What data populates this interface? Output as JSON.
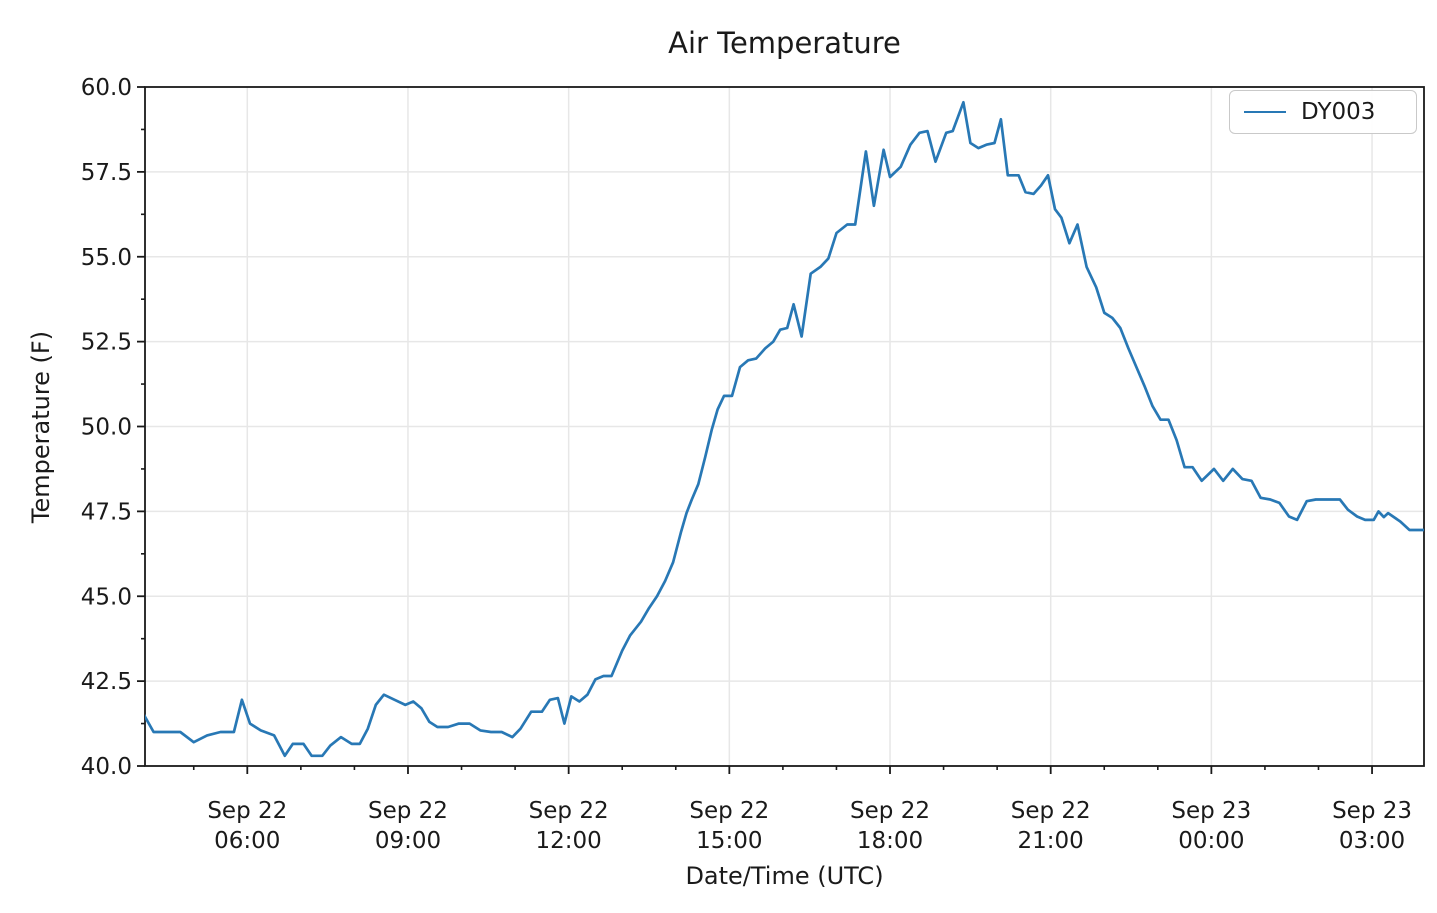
{
  "chart_data": {
    "type": "line",
    "title": "Air Temperature",
    "xlabel": "Date/Time (UTC)",
    "ylabel": "Temperature (F)",
    "grid": "major gridlines on, light gray",
    "legend_position": "upper right",
    "x_unit": "decimal hours UTC since Sep 22 00:00",
    "xlim_hours": [
      4.09,
      27.97
    ],
    "ylim": [
      40.0,
      60.0
    ],
    "y_major_ticks": [
      40.0,
      42.5,
      45.0,
      47.5,
      50.0,
      52.5,
      55.0,
      57.5,
      60.0
    ],
    "y_minor_tick_step": 1.25,
    "x_minor_tick_step_hours": 1,
    "x_major_ticks": [
      {
        "hour": 6,
        "line1": "Sep 22",
        "line2": "06:00"
      },
      {
        "hour": 9,
        "line1": "Sep 22",
        "line2": "09:00"
      },
      {
        "hour": 12,
        "line1": "Sep 22",
        "line2": "12:00"
      },
      {
        "hour": 15,
        "line1": "Sep 22",
        "line2": "15:00"
      },
      {
        "hour": 18,
        "line1": "Sep 22",
        "line2": "18:00"
      },
      {
        "hour": 21,
        "line1": "Sep 22",
        "line2": "21:00"
      },
      {
        "hour": 24,
        "line1": "Sep 23",
        "line2": "00:00"
      },
      {
        "hour": 27,
        "line1": "Sep 23",
        "line2": "03:00"
      }
    ],
    "colors": {
      "line": "#2878b5",
      "grid": "#e7e7e7",
      "spine": "#1a1a1a",
      "text": "#1a1a1a",
      "legend_border": "#c9c9c9",
      "background": "#ffffff"
    },
    "series": [
      {
        "name": "DY003",
        "color": "#2878b5",
        "points": [
          [
            4.0,
            41.7
          ],
          [
            4.25,
            41.0
          ],
          [
            4.5,
            41.0
          ],
          [
            4.75,
            41.0
          ],
          [
            5.0,
            40.7
          ],
          [
            5.25,
            40.9
          ],
          [
            5.5,
            41.0
          ],
          [
            5.75,
            41.0
          ],
          [
            5.9,
            41.95
          ],
          [
            6.05,
            41.25
          ],
          [
            6.25,
            41.05
          ],
          [
            6.5,
            40.9
          ],
          [
            6.7,
            40.3
          ],
          [
            6.85,
            40.65
          ],
          [
            7.05,
            40.65
          ],
          [
            7.2,
            40.3
          ],
          [
            7.4,
            40.3
          ],
          [
            7.55,
            40.6
          ],
          [
            7.75,
            40.85
          ],
          [
            7.95,
            40.65
          ],
          [
            8.1,
            40.65
          ],
          [
            8.25,
            41.1
          ],
          [
            8.4,
            41.8
          ],
          [
            8.55,
            42.1
          ],
          [
            8.75,
            41.95
          ],
          [
            8.95,
            41.8
          ],
          [
            9.1,
            41.9
          ],
          [
            9.25,
            41.7
          ],
          [
            9.4,
            41.3
          ],
          [
            9.55,
            41.15
          ],
          [
            9.75,
            41.15
          ],
          [
            9.95,
            41.25
          ],
          [
            10.15,
            41.25
          ],
          [
            10.35,
            41.05
          ],
          [
            10.55,
            41.0
          ],
          [
            10.75,
            41.0
          ],
          [
            10.95,
            40.85
          ],
          [
            11.1,
            41.1
          ],
          [
            11.3,
            41.6
          ],
          [
            11.5,
            41.6
          ],
          [
            11.65,
            41.95
          ],
          [
            11.8,
            42.0
          ],
          [
            11.92,
            41.25
          ],
          [
            12.05,
            42.05
          ],
          [
            12.2,
            41.9
          ],
          [
            12.35,
            42.1
          ],
          [
            12.5,
            42.55
          ],
          [
            12.65,
            42.65
          ],
          [
            12.8,
            42.65
          ],
          [
            13.0,
            43.4
          ],
          [
            13.15,
            43.85
          ],
          [
            13.35,
            44.25
          ],
          [
            13.5,
            44.65
          ],
          [
            13.65,
            45.0
          ],
          [
            13.8,
            45.45
          ],
          [
            13.95,
            46.0
          ],
          [
            14.1,
            46.9
          ],
          [
            14.2,
            47.45
          ],
          [
            14.3,
            47.85
          ],
          [
            14.42,
            48.3
          ],
          [
            14.55,
            49.1
          ],
          [
            14.67,
            49.9
          ],
          [
            14.78,
            50.5
          ],
          [
            14.9,
            50.9
          ],
          [
            15.05,
            50.9
          ],
          [
            15.2,
            51.75
          ],
          [
            15.35,
            51.95
          ],
          [
            15.5,
            52.0
          ],
          [
            15.67,
            52.3
          ],
          [
            15.82,
            52.5
          ],
          [
            15.95,
            52.85
          ],
          [
            16.08,
            52.9
          ],
          [
            16.2,
            53.6
          ],
          [
            16.35,
            52.65
          ],
          [
            16.52,
            54.5
          ],
          [
            16.7,
            54.7
          ],
          [
            16.85,
            54.95
          ],
          [
            17.0,
            55.7
          ],
          [
            17.2,
            55.95
          ],
          [
            17.35,
            55.95
          ],
          [
            17.55,
            58.1
          ],
          [
            17.7,
            56.5
          ],
          [
            17.88,
            58.15
          ],
          [
            18.0,
            57.35
          ],
          [
            18.2,
            57.65
          ],
          [
            18.38,
            58.3
          ],
          [
            18.55,
            58.65
          ],
          [
            18.7,
            58.7
          ],
          [
            18.85,
            57.8
          ],
          [
            19.05,
            58.65
          ],
          [
            19.17,
            58.7
          ],
          [
            19.37,
            59.55
          ],
          [
            19.5,
            58.35
          ],
          [
            19.65,
            58.2
          ],
          [
            19.8,
            58.3
          ],
          [
            19.95,
            58.35
          ],
          [
            20.07,
            59.05
          ],
          [
            20.2,
            57.4
          ],
          [
            20.4,
            57.4
          ],
          [
            20.53,
            56.9
          ],
          [
            20.68,
            56.85
          ],
          [
            20.82,
            57.1
          ],
          [
            20.95,
            57.4
          ],
          [
            21.08,
            56.4
          ],
          [
            21.2,
            56.15
          ],
          [
            21.35,
            55.4
          ],
          [
            21.5,
            55.95
          ],
          [
            21.67,
            54.7
          ],
          [
            21.85,
            54.1
          ],
          [
            22.0,
            53.35
          ],
          [
            22.15,
            53.2
          ],
          [
            22.3,
            52.9
          ],
          [
            22.45,
            52.3
          ],
          [
            22.6,
            51.75
          ],
          [
            22.75,
            51.2
          ],
          [
            22.9,
            50.6
          ],
          [
            23.05,
            50.2
          ],
          [
            23.2,
            50.2
          ],
          [
            23.35,
            49.6
          ],
          [
            23.5,
            48.8
          ],
          [
            23.65,
            48.8
          ],
          [
            23.82,
            48.4
          ],
          [
            24.05,
            48.75
          ],
          [
            24.22,
            48.4
          ],
          [
            24.4,
            48.75
          ],
          [
            24.58,
            48.45
          ],
          [
            24.75,
            48.4
          ],
          [
            24.92,
            47.9
          ],
          [
            25.1,
            47.85
          ],
          [
            25.27,
            47.75
          ],
          [
            25.45,
            47.35
          ],
          [
            25.6,
            47.25
          ],
          [
            25.78,
            47.8
          ],
          [
            25.95,
            47.85
          ],
          [
            26.4,
            47.85
          ],
          [
            26.55,
            47.55
          ],
          [
            26.72,
            47.35
          ],
          [
            26.87,
            47.25
          ],
          [
            27.03,
            47.25
          ],
          [
            27.12,
            47.5
          ],
          [
            27.22,
            47.33
          ],
          [
            27.3,
            47.45
          ],
          [
            27.53,
            47.2
          ],
          [
            27.7,
            46.95
          ],
          [
            28.0,
            46.95
          ]
        ]
      }
    ]
  }
}
